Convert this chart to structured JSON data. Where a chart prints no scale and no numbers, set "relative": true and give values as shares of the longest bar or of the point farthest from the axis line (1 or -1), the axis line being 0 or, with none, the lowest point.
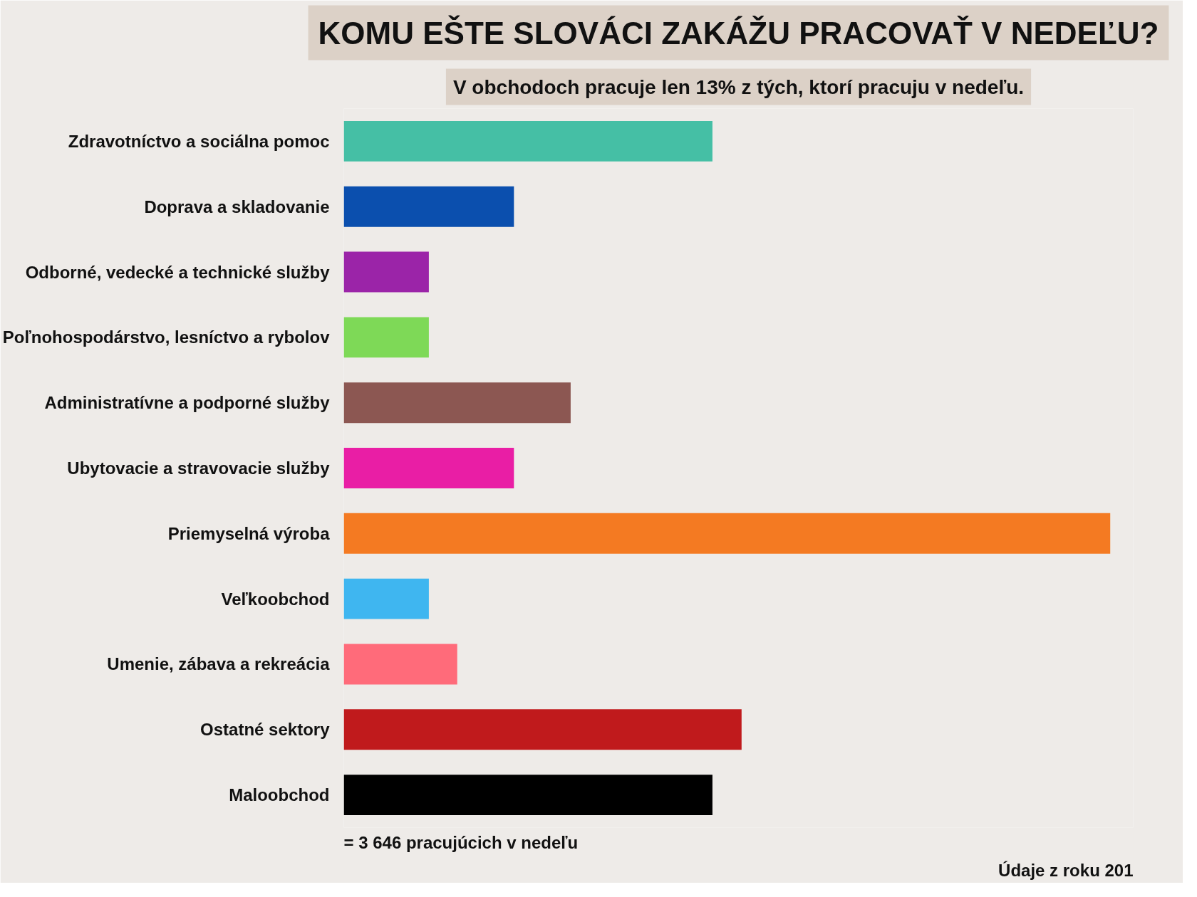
{
  "chart_data": {
    "type": "bar",
    "orientation": "horizontal",
    "relative": true,
    "title": "KOMU EŠTE SLOVÁCI ZAKÁŽU PRACOVAŤ V NEDEĽU?",
    "subtitle": "V obchodoch pracuje len 13% z tých, ktorí pracuju v nedeľu.",
    "categories": [
      "Zdravotníctvo a sociálna pomoc",
      "Doprava a skladovanie",
      "Odborné, vedecké a technické služby",
      "Poľnohospodárstvo, lesníctvo a rybolov",
      "Administratívne a podporné služby",
      "Ubytovacie a stravovacie služby",
      "Priemyselná výroba",
      "Veľkoobchod",
      "Umenie, zábava a rekreácia",
      "Ostatné sektory",
      "Maloobchod"
    ],
    "values": [
      0.481,
      0.222,
      0.111,
      0.111,
      0.296,
      0.222,
      1,
      0.111,
      0.148,
      0.519,
      0.481
    ],
    "colors": [
      "#45bfa5",
      "#0b4fae",
      "#9b24a8",
      "#7ed957",
      "#8c5752",
      "#e91ea5",
      "#f47a22",
      "#3fb6f0",
      "#ff6b7a",
      "#c01a1c",
      "#000000"
    ],
    "annotations": [
      "= 3 646 pracujúcich v nedeľu",
      "Údaje z roku 201"
    ]
  }
}
